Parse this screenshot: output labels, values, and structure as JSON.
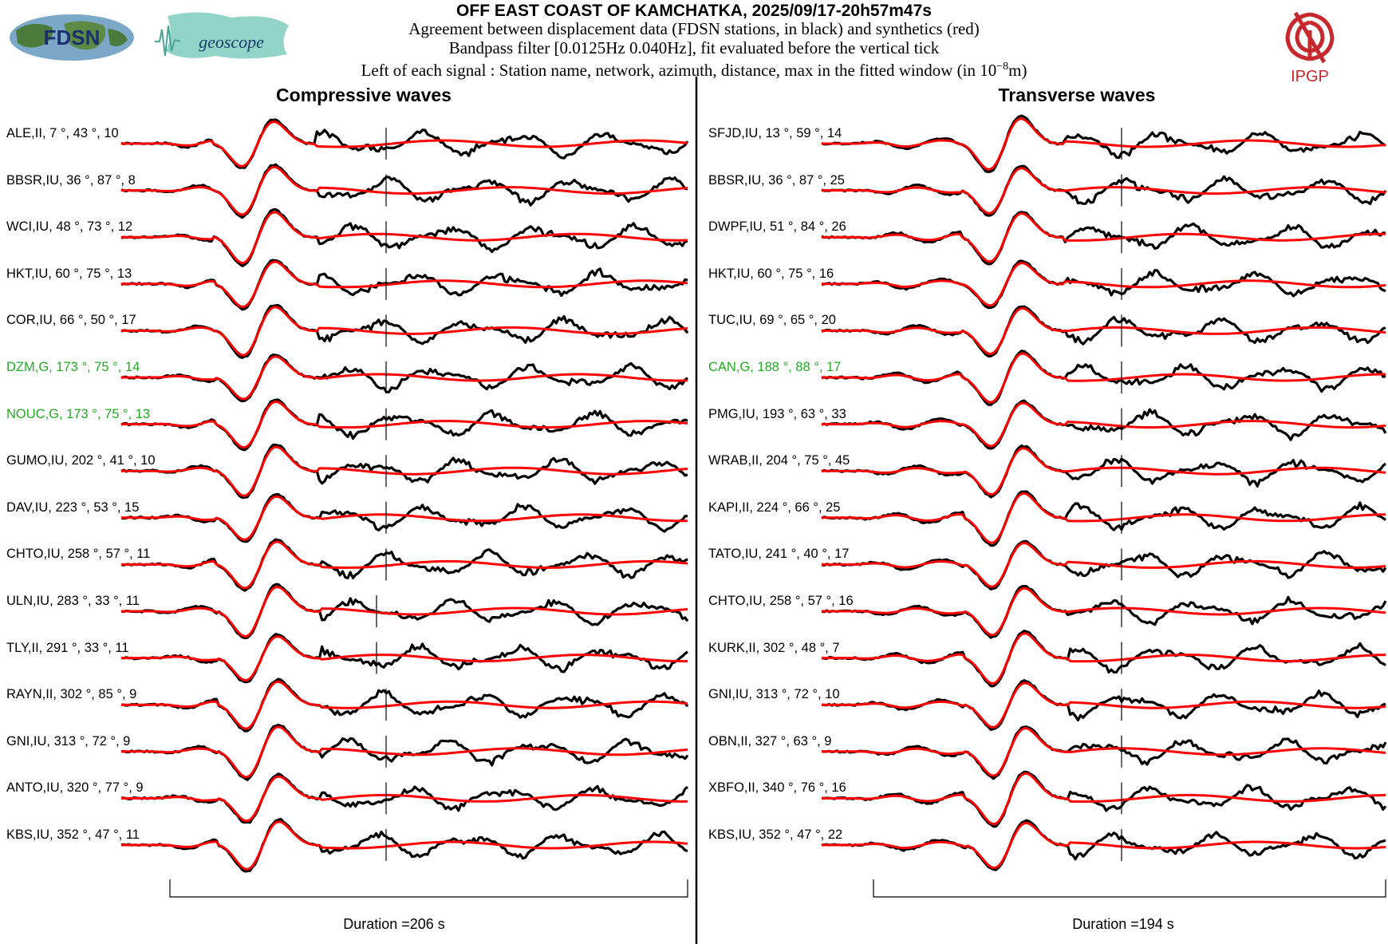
{
  "header": {
    "title": "OFF EAST COAST OF KAMCHATKA, 2025/09/17-20h57m47s",
    "line1": "Agreement between displacement data (FDSN stations, in black) and synthetics (red)",
    "line2": "Bandpass filter [0.0125Hz 0.040Hz], fit evaluated before the vertical tick",
    "line3_prefix": "Left of each signal : Station name, network, azimuth, distance, max in the fitted window (in 10",
    "line3_sup": "−8",
    "line3_suffix": "m)"
  },
  "logos": {
    "fdsn": "FDSN",
    "geoscope": "geoscope",
    "ipgp": "IPGP"
  },
  "colors": {
    "data": "#000000",
    "synthetic": "#ff0000",
    "highlight": "#22aa22"
  },
  "chart_data": [
    {
      "type": "line",
      "title": "Compressive waves",
      "duration_label": "Duration =206 s",
      "series": [
        "data (black)",
        "synthetics (red)"
      ],
      "stations": [
        {
          "label": "ALE,II, 7 °, 43 °, 10",
          "highlight": false
        },
        {
          "label": "BBSR,IU, 36 °, 87 °, 8",
          "highlight": false
        },
        {
          "label": "WCI,IU, 48 °, 73 °, 12",
          "highlight": false
        },
        {
          "label": "HKT,IU, 60 °, 75 °, 13",
          "highlight": false
        },
        {
          "label": "COR,IU, 66 °, 50 °, 17",
          "highlight": false
        },
        {
          "label": "DZM,G, 173 °, 75 °, 14",
          "highlight": true
        },
        {
          "label": "NOUC,G, 173 °, 75 °, 13",
          "highlight": true
        },
        {
          "label": "GUMO,IU, 202 °, 41 °, 10",
          "highlight": false
        },
        {
          "label": "DAV,IU, 223 °, 53 °, 15",
          "highlight": false
        },
        {
          "label": "CHTO,IU, 258 °, 57 °, 11",
          "highlight": false
        },
        {
          "label": "ULN,IU, 283 °, 33 °, 11",
          "highlight": false
        },
        {
          "label": "TLY,II, 291 °, 33 °, 11",
          "highlight": false
        },
        {
          "label": "RAYN,II, 302 °, 85 °, 9",
          "highlight": false
        },
        {
          "label": "GNI,IU, 313 °, 72 °, 9",
          "highlight": false
        },
        {
          "label": "ANTO,IU, 320 °, 77 °, 9",
          "highlight": false
        },
        {
          "label": "KBS,IU, 352 °, 47 °, 11",
          "highlight": false
        }
      ]
    },
    {
      "type": "line",
      "title": "Transverse waves",
      "duration_label": "Duration =194 s",
      "series": [
        "data (black)",
        "synthetics (red)"
      ],
      "stations": [
        {
          "label": "SFJD,IU, 13 °, 59 °, 14",
          "highlight": false
        },
        {
          "label": "BBSR,IU, 36 °, 87 °, 25",
          "highlight": false
        },
        {
          "label": "DWPF,IU, 51 °, 84 °, 26",
          "highlight": false
        },
        {
          "label": "HKT,IU, 60 °, 75 °, 16",
          "highlight": false
        },
        {
          "label": "TUC,IU, 69 °, 65 °, 20",
          "highlight": false
        },
        {
          "label": "CAN,G, 188 °, 88 °, 17",
          "highlight": true
        },
        {
          "label": "PMG,IU, 193 °, 63 °, 33",
          "highlight": false
        },
        {
          "label": "WRAB,II, 204 °, 75 °, 45",
          "highlight": false
        },
        {
          "label": "KAPI,II, 224 °, 66 °, 25",
          "highlight": false
        },
        {
          "label": "TATO,IU, 241 °, 40 °, 17",
          "highlight": false
        },
        {
          "label": "CHTO,IU, 258 °, 57 °, 16",
          "highlight": false
        },
        {
          "label": "KURK,II, 302 °, 48 °, 7",
          "highlight": false
        },
        {
          "label": "GNI,IU, 313 °, 72 °, 10",
          "highlight": false
        },
        {
          "label": "OBN,II, 327 °, 63 °, 9",
          "highlight": false
        },
        {
          "label": "XBFO,II, 340 °, 76 °, 16",
          "highlight": false
        },
        {
          "label": "KBS,IU, 352 °, 47 °, 22",
          "highlight": false
        }
      ]
    }
  ]
}
